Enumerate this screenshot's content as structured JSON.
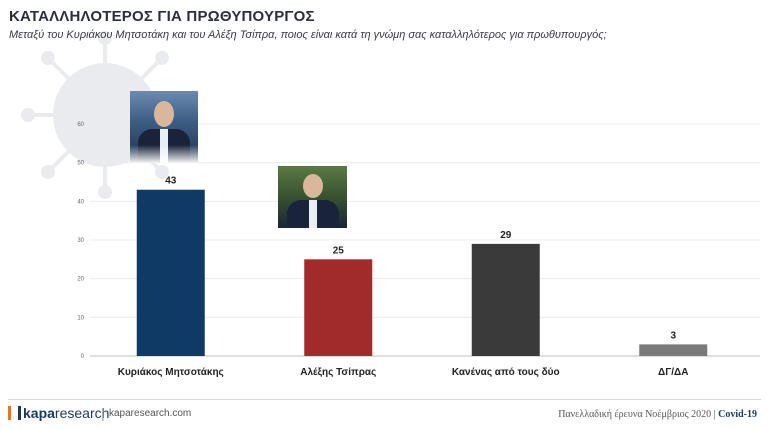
{
  "header": {
    "title": "ΚΑΤΑΛΛΗΛΟΤΕΡΟΣ ΓΙΑ ΠΡΩΘΥΠΟΥΡΓΟΣ",
    "subtitle": "Μεταξύ του Κυριάκου Μητσοτάκη και του Αλέξη Τσίπρα, ποιος είναι κατά τη γνώμη σας καταλληλότερος για πρωθυπουργός;"
  },
  "chart_data": {
    "type": "bar",
    "title": "ΚΑΤΑΛΛΗΛΟΤΕΡΟΣ ΓΙΑ ΠΡΩΘΥΠΟΥΡΓΟΣ",
    "categories": [
      "Κυριάκος Μητσοτάκης",
      "Αλέξης Τσίπρας",
      "Κανένας από τους δύο",
      "ΔΓ/ΔΑ"
    ],
    "values": [
      43,
      25,
      29,
      3
    ],
    "bar_colors": [
      "#0f3a66",
      "#a12a2a",
      "#3a3a3a",
      "#7a7a7a"
    ],
    "ylim": [
      0,
      60
    ],
    "yticks": [
      0,
      10,
      20,
      30,
      40,
      50,
      60
    ],
    "grid": true,
    "legend": "none"
  },
  "footer": {
    "logo_brand": "kapa",
    "logo_rest": "research",
    "separator": "|",
    "website": "kaparesearch.com",
    "survey_text": "Πανελλαδική έρευνα Νοέμβριος 2020 |",
    "survey_tag": "Covid-19"
  },
  "icons": {
    "virus": "coronavirus-icon",
    "logo": "kapa-research-logo"
  }
}
